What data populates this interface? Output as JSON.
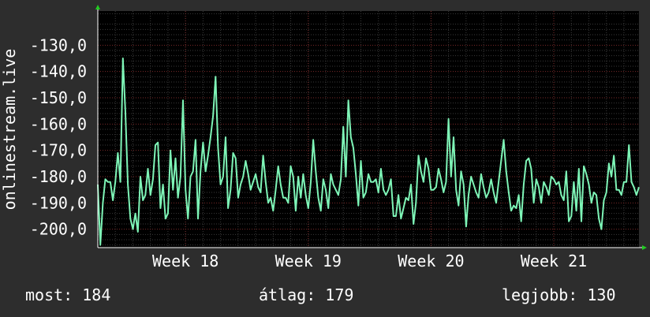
{
  "chart_data": {
    "type": "line",
    "ylabel": "onlinestream.live",
    "ylim": [
      -207,
      -117
    ],
    "yticks": [
      -130,
      -140,
      -150,
      -160,
      -170,
      -180,
      -190,
      -200
    ],
    "ytick_labels": [
      "-130,0",
      "-140,0",
      "-150,0",
      "-160,0",
      "-170,0",
      "-180,0",
      "-190,0",
      "-200,0"
    ],
    "xticks": [
      {
        "label": "Week 18",
        "x": 35
      },
      {
        "label": "Week 19",
        "x": 84
      },
      {
        "label": "Week 20",
        "x": 133
      },
      {
        "label": "Week 21",
        "x": 182
      }
    ],
    "xlim": [
      0,
      216
    ],
    "grid": true,
    "series": [
      {
        "color": "#7ef5b7",
        "values": [
          -183,
          -206,
          -190,
          -181,
          -182,
          -182,
          -189,
          -182,
          -171,
          -182,
          -135,
          -155,
          -183,
          -196,
          -200,
          -194,
          -201,
          -180,
          -189,
          -187,
          -177,
          -187,
          -181,
          -168,
          -167,
          -192,
          -183,
          -196,
          -194,
          -170,
          -185,
          -173,
          -188,
          -180,
          -151,
          -185,
          -196,
          -180,
          -178,
          -166,
          -196,
          -178,
          -167,
          -178,
          -172,
          -165,
          -157,
          -142,
          -169,
          -183,
          -180,
          -165,
          -192,
          -185,
          -171,
          -173,
          -188,
          -183,
          -180,
          -174,
          -179,
          -185,
          -182,
          -179,
          -184,
          -186,
          -172,
          -182,
          -190,
          -188,
          -193,
          -185,
          -176,
          -183,
          -188,
          -188,
          -190,
          -176,
          -180,
          -193,
          -180,
          -188,
          -179,
          -187,
          -192,
          -182,
          -166,
          -178,
          -188,
          -193,
          -181,
          -185,
          -192,
          -179,
          -183,
          -185,
          -187,
          -181,
          -161,
          -180,
          -151,
          -165,
          -169,
          -179,
          -191,
          -174,
          -188,
          -186,
          -179,
          -182,
          -182,
          -181,
          -186,
          -177,
          -185,
          -187,
          -185,
          -181,
          -195,
          -195,
          -187,
          -196,
          -192,
          -188,
          -189,
          -183,
          -198,
          -190,
          -172,
          -178,
          -182,
          -173,
          -177,
          -185,
          -185,
          -184,
          -177,
          -181,
          -186,
          -182,
          -158,
          -180,
          -165,
          -185,
          -191,
          -178,
          -183,
          -199,
          -187,
          -180,
          -183,
          -186,
          -188,
          -179,
          -184,
          -188,
          -186,
          -181,
          -186,
          -190,
          -182,
          -174,
          -166,
          -178,
          -186,
          -193,
          -191,
          -192,
          -187,
          -197,
          -183,
          -174,
          -173,
          -177,
          -190,
          -181,
          -184,
          -190,
          -182,
          -184,
          -187,
          -180,
          -181,
          -183,
          -182,
          -187,
          -189,
          -178,
          -197,
          -195,
          -182,
          -193,
          -177,
          -197,
          -176,
          -179,
          -183,
          -190,
          -186,
          -187,
          -196,
          -200,
          -189,
          -186,
          -175,
          -180,
          -172,
          -185,
          -185,
          -187,
          -182,
          -182,
          -168,
          -182,
          -184,
          -187,
          -184
        ]
      }
    ]
  },
  "footer": {
    "current": "most: 184",
    "average": "átlag: 179",
    "best": "legjobb: 130"
  }
}
